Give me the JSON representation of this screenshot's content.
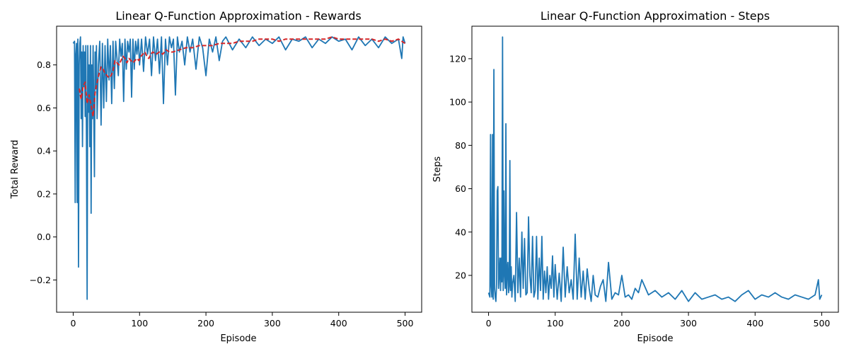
{
  "chart_data": [
    {
      "type": "line",
      "title": "Linear Q-Function Approximation - Rewards",
      "xlabel": "Episode",
      "ylabel": "Total Reward",
      "xlim": [
        -25,
        525
      ],
      "ylim": [
        -0.35,
        0.98
      ],
      "xticks": [
        0,
        100,
        200,
        300,
        400,
        500
      ],
      "yticks": [
        -0.2,
        0.0,
        0.2,
        0.4,
        0.6,
        0.8
      ],
      "xtick_labels": [
        "0",
        "100",
        "200",
        "300",
        "400",
        "500"
      ],
      "ytick_labels": [
        "−0.2",
        "0.0",
        "0.2",
        "0.4",
        "0.6",
        "0.8"
      ],
      "grid": false,
      "series": [
        {
          "color": "#1f77b4",
          "style": "solid",
          "x": [
            0,
            2,
            3,
            4,
            5,
            6,
            7,
            8,
            9,
            10,
            11,
            12,
            13,
            14,
            15,
            16,
            17,
            18,
            19,
            20,
            21,
            22,
            23,
            24,
            25,
            26,
            27,
            28,
            29,
            30,
            31,
            32,
            33,
            34,
            35,
            36,
            38,
            40,
            42,
            44,
            46,
            48,
            50,
            52,
            54,
            56,
            58,
            60,
            62,
            64,
            66,
            68,
            70,
            72,
            74,
            76,
            78,
            80,
            82,
            84,
            86,
            88,
            90,
            92,
            94,
            96,
            98,
            100,
            103,
            106,
            109,
            112,
            115,
            118,
            121,
            124,
            127,
            130,
            133,
            136,
            139,
            142,
            145,
            148,
            151,
            154,
            157,
            160,
            164,
            168,
            172,
            176,
            180,
            185,
            190,
            195,
            200,
            205,
            210,
            215,
            220,
            225,
            230,
            240,
            250,
            260,
            270,
            280,
            290,
            300,
            310,
            320,
            330,
            340,
            350,
            360,
            370,
            380,
            390,
            400,
            410,
            420,
            430,
            440,
            450,
            460,
            470,
            480,
            490,
            495,
            497,
            500
          ],
          "values": [
            0.9,
            0.91,
            0.16,
            0.85,
            0.9,
            0.16,
            0.92,
            -0.14,
            0.8,
            0.9,
            0.93,
            0.55,
            0.86,
            0.42,
            0.89,
            0.7,
            0.86,
            0.56,
            0.89,
            0.45,
            -0.29,
            0.89,
            0.58,
            0.8,
            0.42,
            0.89,
            0.11,
            0.8,
            0.55,
            0.89,
            0.58,
            0.28,
            0.86,
            0.7,
            0.89,
            0.55,
            0.8,
            0.91,
            0.52,
            0.9,
            0.6,
            0.89,
            0.63,
            0.92,
            0.73,
            0.89,
            0.62,
            0.91,
            0.69,
            0.91,
            0.83,
            0.75,
            0.92,
            0.84,
            0.9,
            0.63,
            0.92,
            0.78,
            0.91,
            0.86,
            0.92,
            0.65,
            0.92,
            0.78,
            0.91,
            0.85,
            0.92,
            0.8,
            0.92,
            0.77,
            0.93,
            0.85,
            0.92,
            0.75,
            0.93,
            0.82,
            0.92,
            0.76,
            0.93,
            0.62,
            0.92,
            0.8,
            0.93,
            0.88,
            0.92,
            0.66,
            0.93,
            0.86,
            0.91,
            0.8,
            0.93,
            0.86,
            0.92,
            0.78,
            0.93,
            0.88,
            0.75,
            0.92,
            0.86,
            0.93,
            0.82,
            0.91,
            0.93,
            0.87,
            0.92,
            0.88,
            0.93,
            0.89,
            0.92,
            0.9,
            0.93,
            0.87,
            0.92,
            0.91,
            0.93,
            0.88,
            0.92,
            0.9,
            0.93,
            0.91,
            0.92,
            0.87,
            0.93,
            0.89,
            0.92,
            0.88,
            0.93,
            0.9,
            0.92,
            0.83,
            0.93,
            0.9
          ]
        },
        {
          "color": "#d62728",
          "style": "dashed",
          "x": [
            9,
            12,
            15,
            18,
            21,
            24,
            27,
            30,
            33,
            36,
            39,
            42,
            45,
            48,
            51,
            54,
            57,
            60,
            63,
            66,
            69,
            72,
            75,
            78,
            81,
            84,
            87,
            90,
            93,
            96,
            99,
            102,
            105,
            108,
            111,
            114,
            117,
            120,
            125,
            130,
            135,
            140,
            145,
            150,
            160,
            170,
            180,
            190,
            200,
            210,
            220,
            230,
            240,
            250,
            260,
            270,
            280,
            290,
            300,
            310,
            320,
            330,
            340,
            350,
            360,
            370,
            380,
            390,
            400,
            410,
            420,
            430,
            440,
            450,
            460,
            470,
            480,
            490,
            495,
            500
          ],
          "values": [
            0.69,
            0.64,
            0.7,
            0.72,
            0.62,
            0.66,
            0.61,
            0.56,
            0.67,
            0.72,
            0.76,
            0.79,
            0.78,
            0.76,
            0.75,
            0.74,
            0.75,
            0.77,
            0.82,
            0.81,
            0.8,
            0.82,
            0.84,
            0.83,
            0.81,
            0.83,
            0.82,
            0.81,
            0.82,
            0.83,
            0.82,
            0.84,
            0.85,
            0.86,
            0.84,
            0.83,
            0.85,
            0.86,
            0.85,
            0.86,
            0.85,
            0.87,
            0.86,
            0.86,
            0.87,
            0.88,
            0.88,
            0.89,
            0.89,
            0.89,
            0.9,
            0.9,
            0.9,
            0.91,
            0.91,
            0.91,
            0.92,
            0.92,
            0.92,
            0.91,
            0.92,
            0.92,
            0.92,
            0.92,
            0.92,
            0.92,
            0.92,
            0.93,
            0.92,
            0.92,
            0.92,
            0.92,
            0.92,
            0.92,
            0.91,
            0.92,
            0.91,
            0.92,
            0.91,
            0.9
          ]
        }
      ]
    },
    {
      "type": "line",
      "title": "Linear Q-Function Approximation - Steps",
      "xlabel": "Episode",
      "ylabel": "Steps",
      "xlim": [
        -25,
        525
      ],
      "ylim": [
        3,
        135
      ],
      "xticks": [
        0,
        100,
        200,
        300,
        400,
        500
      ],
      "yticks": [
        20,
        40,
        60,
        80,
        100,
        120
      ],
      "xtick_labels": [
        "0",
        "100",
        "200",
        "300",
        "400",
        "500"
      ],
      "ytick_labels": [
        "20",
        "40",
        "60",
        "80",
        "100",
        "120"
      ],
      "grid": false,
      "series": [
        {
          "color": "#1f77b4",
          "style": "solid",
          "x": [
            0,
            2,
            3,
            4,
            5,
            6,
            7,
            8,
            9,
            10,
            11,
            12,
            13,
            14,
            15,
            16,
            17,
            18,
            19,
            20,
            21,
            22,
            23,
            24,
            25,
            26,
            27,
            28,
            29,
            30,
            31,
            32,
            33,
            34,
            35,
            36,
            38,
            40,
            42,
            44,
            46,
            48,
            50,
            52,
            54,
            56,
            58,
            60,
            62,
            64,
            66,
            68,
            70,
            72,
            74,
            76,
            78,
            80,
            82,
            84,
            86,
            88,
            90,
            92,
            94,
            96,
            98,
            100,
            103,
            106,
            109,
            112,
            115,
            118,
            121,
            124,
            127,
            130,
            133,
            136,
            139,
            142,
            145,
            148,
            151,
            154,
            157,
            160,
            164,
            168,
            172,
            176,
            180,
            185,
            190,
            195,
            200,
            205,
            210,
            215,
            220,
            225,
            230,
            240,
            250,
            260,
            270,
            280,
            290,
            300,
            310,
            320,
            330,
            340,
            350,
            360,
            370,
            380,
            390,
            400,
            410,
            420,
            430,
            440,
            450,
            460,
            470,
            480,
            490,
            495,
            497,
            500
          ],
          "values": [
            12,
            10,
            85,
            15,
            10,
            85,
            9,
            115,
            14,
            10,
            8,
            16,
            59,
            61,
            14,
            20,
            28,
            13,
            28,
            17,
            130,
            13,
            59,
            20,
            14,
            90,
            11,
            22,
            26,
            12,
            15,
            73,
            13,
            24,
            10,
            16,
            20,
            8,
            49,
            12,
            28,
            10,
            40,
            14,
            37,
            11,
            12,
            47,
            20,
            12,
            38,
            10,
            13,
            38,
            9,
            28,
            13,
            38,
            9,
            22,
            12,
            24,
            9,
            20,
            14,
            29,
            10,
            25,
            9,
            21,
            8,
            33,
            10,
            24,
            12,
            18,
            9,
            39,
            9,
            28,
            10,
            22,
            9,
            23,
            14,
            8,
            20,
            11,
            10,
            15,
            18,
            8,
            26,
            9,
            12,
            11,
            20,
            10,
            11,
            9,
            14,
            12,
            18,
            11,
            13,
            10,
            12,
            9,
            13,
            8,
            12,
            9,
            10,
            11,
            9,
            10,
            8,
            11,
            13,
            9,
            11,
            10,
            12,
            10,
            9,
            11,
            10,
            9,
            11,
            18,
            9,
            11
          ]
        }
      ]
    }
  ]
}
